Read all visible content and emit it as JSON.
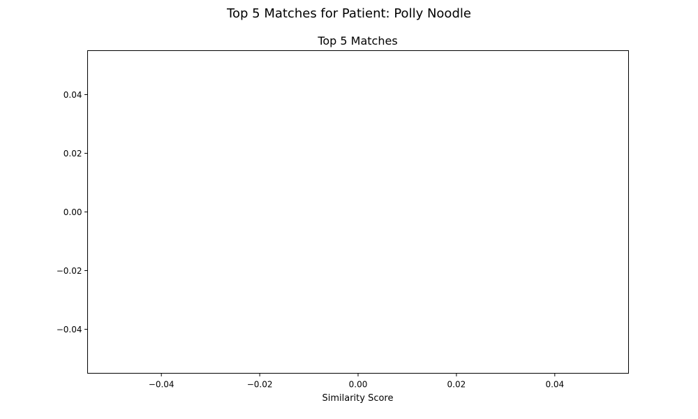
{
  "figure": {
    "suptitle": "Top 5 Matches for Patient: Polly Noodle"
  },
  "chart_data": {
    "type": "bar",
    "orientation": "horizontal",
    "title": "Top 5 Matches",
    "xlabel": "Similarity Score",
    "ylabel": "",
    "categories": [],
    "values": [],
    "xlim": [
      -0.055,
      0.055
    ],
    "ylim": [
      -0.055,
      0.055
    ],
    "xticks": [
      -0.04,
      -0.02,
      0.0,
      0.02,
      0.04
    ],
    "xtick_labels": [
      "−0.04",
      "−0.02",
      "0.00",
      "0.02",
      "0.04"
    ],
    "yticks": [
      0.04,
      0.02,
      0.0,
      -0.02,
      -0.04
    ],
    "ytick_labels": [
      "0.04",
      "0.02",
      "0.00",
      "−0.02",
      "−0.04"
    ],
    "grid": false,
    "legend": "none"
  }
}
